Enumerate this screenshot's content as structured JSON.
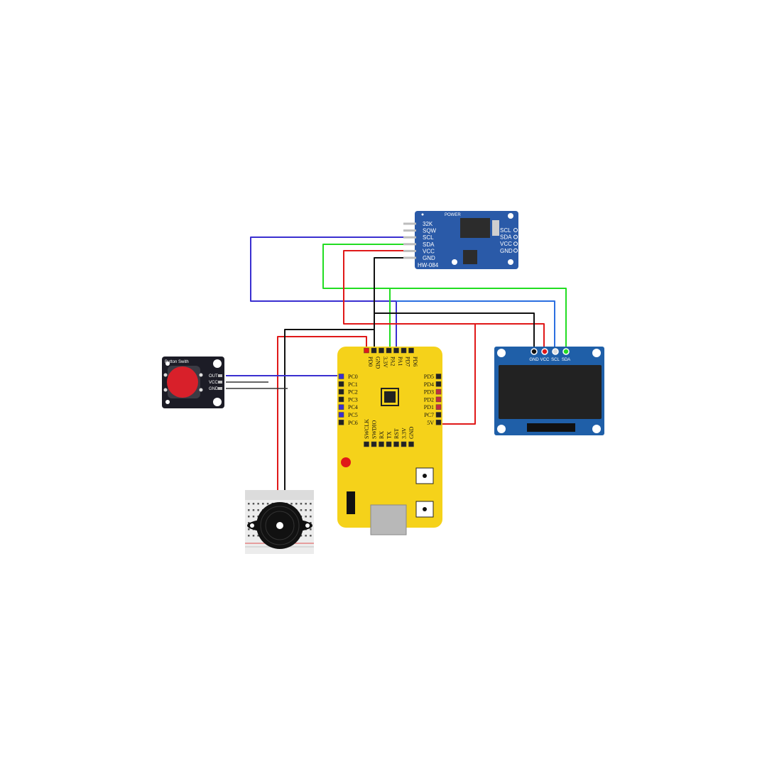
{
  "rtc": {
    "left_pins": [
      "32K",
      "SQW",
      "SCL",
      "SDA",
      "VCC",
      "GND"
    ],
    "right_pins": [
      "SCL",
      "SDA",
      "VCC",
      "GND"
    ],
    "power_label": "POWER",
    "model": "HW-084"
  },
  "mcu": {
    "top_pins": [
      "PD0",
      "GND",
      "3.3V",
      "PA2",
      "PA1",
      "PD7",
      "PD6"
    ],
    "left_pins": [
      "PC0",
      "PC1",
      "PC2",
      "PC3",
      "PC4",
      "PC5",
      "PC6"
    ],
    "right_pins": [
      "PD5",
      "PD4",
      "PD3",
      "PD2",
      "PD1",
      "PC7",
      "5V"
    ],
    "bottom_pins": [
      "SWCLK",
      "SWDIO",
      "RX",
      "TX",
      "RST",
      "3.3V",
      "GND"
    ]
  },
  "oled": {
    "pins": [
      "GND",
      "VCC",
      "SCL",
      "SDA"
    ]
  },
  "button": {
    "title": "Button Swith",
    "pins": [
      "OUT",
      "VCC",
      "GND"
    ]
  },
  "colors": {
    "wire_blue": "#3a2fd0",
    "wire_green": "#22dd22",
    "wire_red": "#e01818",
    "wire_black": "#111111",
    "wire_lightblue": "#2b6fe0",
    "mcu_board": "#f5d21a",
    "rtc_board": "#2a5aa8",
    "oled_board": "#1f5fa8",
    "button_cap": "#d8202a"
  }
}
